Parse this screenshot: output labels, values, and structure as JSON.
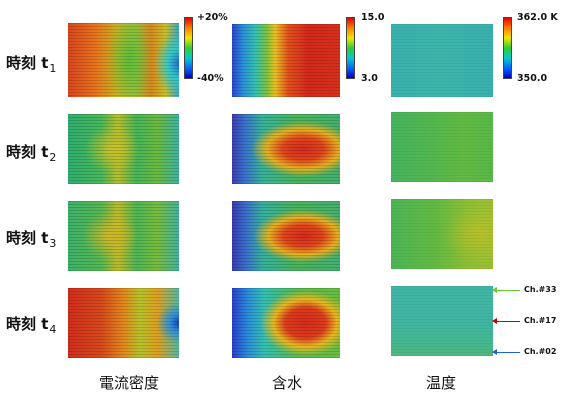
{
  "rows": [
    {
      "main": "時刻 t",
      "sub": "1"
    },
    {
      "main": "時刻 t",
      "sub": "2"
    },
    {
      "main": "時刻 t",
      "sub": "3"
    },
    {
      "main": "時刻 t",
      "sub": "4"
    }
  ],
  "columns": [
    "電流密度",
    "含水",
    "温度"
  ],
  "colorbars": {
    "current_density": {
      "max": "+20%",
      "min": "-40%"
    },
    "water": {
      "max": "15.0",
      "min": "3.0"
    },
    "temperature": {
      "max": "362.0 K",
      "min": "350.0"
    }
  },
  "channels": [
    {
      "label": "Ch.#33",
      "color": "#66cc33"
    },
    {
      "label": "Ch.#17",
      "color": "#cc0000"
    },
    {
      "label": "Ch.#02",
      "color": "#1a66cc"
    }
  ],
  "colors": {
    "background": "#ffffff"
  }
}
